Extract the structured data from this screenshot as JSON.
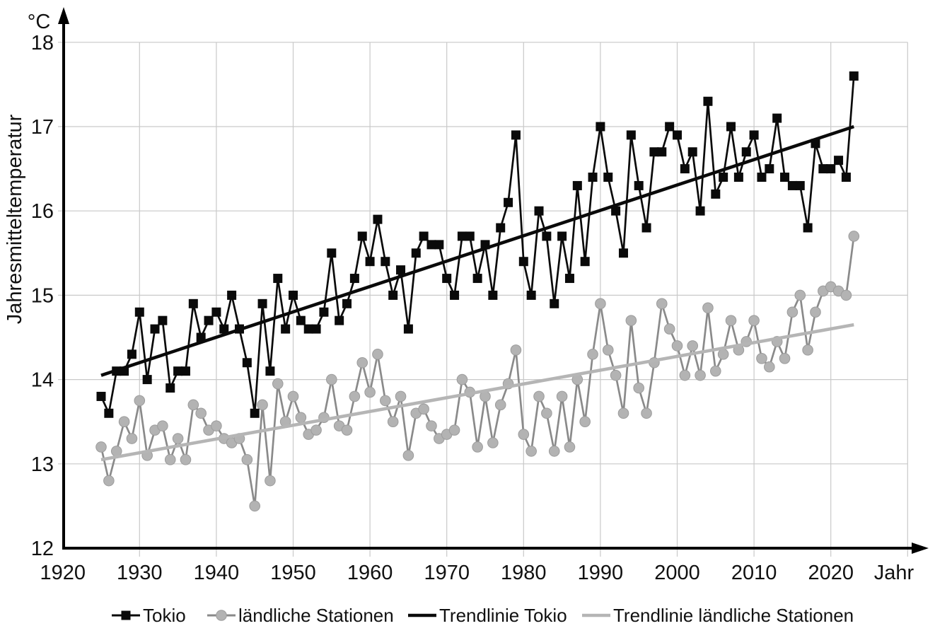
{
  "chart_data": {
    "type": "line",
    "title": "",
    "unit_label": "°C",
    "ylabel": "Jahresmitteltemperatur",
    "xlabel": "Jahr",
    "x_ticks": [
      1920,
      1930,
      1940,
      1950,
      1960,
      1970,
      1980,
      1990,
      2000,
      2010,
      2020
    ],
    "y_ticks": [
      12,
      13,
      14,
      15,
      16,
      17,
      18
    ],
    "xlim": [
      1920,
      2030
    ],
    "ylim": [
      12,
      18
    ],
    "grid": true,
    "legend_position": "bottom",
    "colors": {
      "tokyo": "#0a0a0a",
      "rural_line": "#8a8a8a",
      "rural_marker": "#b3b3b3",
      "rural_marker_edge": "#9c9c9c",
      "rural_trend": "#b5b5b5",
      "gridline": "#c9c9c9",
      "axis": "#000000"
    },
    "years": [
      1925,
      1926,
      1927,
      1928,
      1929,
      1930,
      1931,
      1932,
      1933,
      1934,
      1935,
      1936,
      1937,
      1938,
      1939,
      1940,
      1941,
      1942,
      1943,
      1944,
      1945,
      1946,
      1947,
      1948,
      1949,
      1950,
      1951,
      1952,
      1953,
      1954,
      1955,
      1956,
      1957,
      1958,
      1959,
      1960,
      1961,
      1962,
      1963,
      1964,
      1965,
      1966,
      1967,
      1968,
      1969,
      1970,
      1971,
      1972,
      1973,
      1974,
      1975,
      1976,
      1977,
      1978,
      1979,
      1980,
      1981,
      1982,
      1983,
      1984,
      1985,
      1986,
      1987,
      1988,
      1989,
      1990,
      1991,
      1992,
      1993,
      1994,
      1995,
      1996,
      1997,
      1998,
      1999,
      2000,
      2001,
      2002,
      2003,
      2004,
      2005,
      2006,
      2007,
      2008,
      2009,
      2010,
      2011,
      2012,
      2013,
      2014,
      2015,
      2016,
      2017,
      2018,
      2019,
      2020,
      2021,
      2022,
      2023
    ],
    "series": [
      {
        "name": "Tokio",
        "kind": "data",
        "marker": "square",
        "values": [
          13.8,
          13.6,
          14.1,
          14.1,
          14.3,
          14.8,
          14.0,
          14.6,
          14.7,
          13.9,
          14.1,
          14.1,
          14.9,
          14.5,
          14.7,
          14.8,
          14.6,
          15.0,
          14.6,
          14.2,
          13.6,
          14.9,
          14.1,
          15.2,
          14.6,
          15.0,
          14.7,
          14.6,
          14.6,
          14.8,
          15.5,
          14.7,
          14.9,
          15.2,
          15.7,
          15.4,
          15.9,
          15.4,
          15.0,
          15.3,
          14.6,
          15.5,
          15.7,
          15.6,
          15.6,
          15.2,
          15.0,
          15.7,
          15.7,
          15.2,
          15.6,
          15.0,
          15.8,
          16.1,
          16.9,
          15.4,
          15.0,
          16.0,
          15.7,
          14.9,
          15.7,
          15.2,
          16.3,
          15.4,
          16.4,
          17.0,
          16.4,
          16.0,
          15.5,
          16.9,
          16.3,
          15.8,
          16.7,
          16.7,
          17.0,
          16.9,
          16.5,
          16.7,
          16.0,
          17.3,
          16.2,
          16.4,
          17.0,
          16.4,
          16.7,
          16.9,
          16.4,
          16.5,
          17.1,
          16.4,
          16.3,
          16.3,
          15.8,
          16.8,
          16.5,
          16.5,
          16.6,
          16.4,
          17.6
        ]
      },
      {
        "name": "ländliche Stationen",
        "kind": "data",
        "marker": "circle",
        "values": [
          13.2,
          12.8,
          13.15,
          13.5,
          13.3,
          13.75,
          13.1,
          13.4,
          13.45,
          13.05,
          13.3,
          13.05,
          13.7,
          13.6,
          13.4,
          13.45,
          13.3,
          13.25,
          13.3,
          13.05,
          12.5,
          13.7,
          12.8,
          13.95,
          13.5,
          13.8,
          13.55,
          13.35,
          13.4,
          13.55,
          14.0,
          13.45,
          13.4,
          13.8,
          14.2,
          13.85,
          14.3,
          13.75,
          13.5,
          13.8,
          13.1,
          13.6,
          13.65,
          13.45,
          13.3,
          13.35,
          13.4,
          14.0,
          13.85,
          13.2,
          13.8,
          13.25,
          13.7,
          13.95,
          14.35,
          13.35,
          13.15,
          13.8,
          13.6,
          13.15,
          13.8,
          13.2,
          14.0,
          13.5,
          14.3,
          14.9,
          14.35,
          14.05,
          13.6,
          14.7,
          13.9,
          13.6,
          14.2,
          14.9,
          14.6,
          14.4,
          14.05,
          14.4,
          14.05,
          14.85,
          14.1,
          14.3,
          14.7,
          14.35,
          14.45,
          14.7,
          14.25,
          14.15,
          14.45,
          14.25,
          14.8,
          15.0,
          14.35,
          14.8,
          15.05,
          15.1,
          15.05,
          15.0,
          15.7
        ]
      },
      {
        "name": "Trendlinie Tokio",
        "kind": "trend",
        "trend_x": [
          1925,
          2023
        ],
        "trend_y": [
          14.05,
          17.0
        ]
      },
      {
        "name": "Trendlinie ländliche Stationen",
        "kind": "trend",
        "trend_x": [
          1925,
          2023
        ],
        "trend_y": [
          13.05,
          14.65
        ]
      }
    ]
  }
}
